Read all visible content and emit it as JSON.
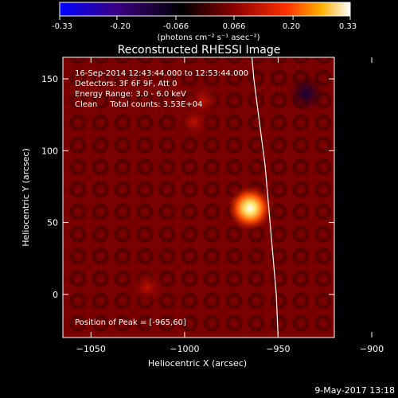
{
  "colorbar": {
    "tick_labels": [
      "-0.33",
      "-0.20",
      "-0.066",
      "0.066",
      "0.20",
      "0.33"
    ],
    "tick_values": [
      -0.33,
      -0.2,
      -0.066,
      0.066,
      0.2,
      0.33
    ],
    "unit_label": "(photons cm⁻² s⁻¹ asec⁻²)",
    "colors": [
      "#0000ff",
      "#3a0080",
      "#000000",
      "#8a0000",
      "#ff3000",
      "#ffb000",
      "#ffffff"
    ]
  },
  "chart_data": {
    "type": "heatmap",
    "title": "Reconstructed RHESSI Image",
    "annotations": [
      "16-Sep-2014 12:43:44.000 to 12:53:44.000",
      "Detectors: 3F 6F 9F, Att 0",
      "Energy Range: 3.0 - 6.0 keV",
      "Clean     Total counts: 3.53E+04"
    ],
    "peak_label": "Position of Peak = [-965,60]",
    "peak": {
      "x": -965,
      "y": 60,
      "value": 0.33
    },
    "xlabel": "Heliocentric X (arcsec)",
    "ylabel": "Heliocentric Y (arcsec)",
    "xlim": [
      -1065,
      -920
    ],
    "ylim": [
      -30,
      165
    ],
    "xticks": [
      -1050,
      -1000,
      -950,
      -900
    ],
    "xtick_labels": [
      "−1050",
      "−1000",
      "−950",
      "−900"
    ],
    "yticks": [
      0,
      50,
      100,
      150
    ],
    "ytick_labels": [
      "0",
      "50",
      "100",
      "150"
    ],
    "limb_curve": [
      [
        -950,
        -30
      ],
      [
        -951,
        0
      ],
      [
        -953,
        30
      ],
      [
        -955,
        60
      ],
      [
        -957,
        90
      ],
      [
        -960,
        120
      ],
      [
        -963,
        150
      ],
      [
        -964,
        165
      ]
    ],
    "blobs": [
      {
        "x": -965,
        "y": 60,
        "value": 0.33
      },
      {
        "x": -995,
        "y": 120,
        "value": 0.1
      },
      {
        "x": -1020,
        "y": 5,
        "value": 0.09
      },
      {
        "x": -990,
        "y": 135,
        "value": 0.07
      },
      {
        "x": -935,
        "y": 140,
        "value": -0.03
      }
    ]
  },
  "footer": {
    "timestamp": "9-May-2017 13:18"
  }
}
